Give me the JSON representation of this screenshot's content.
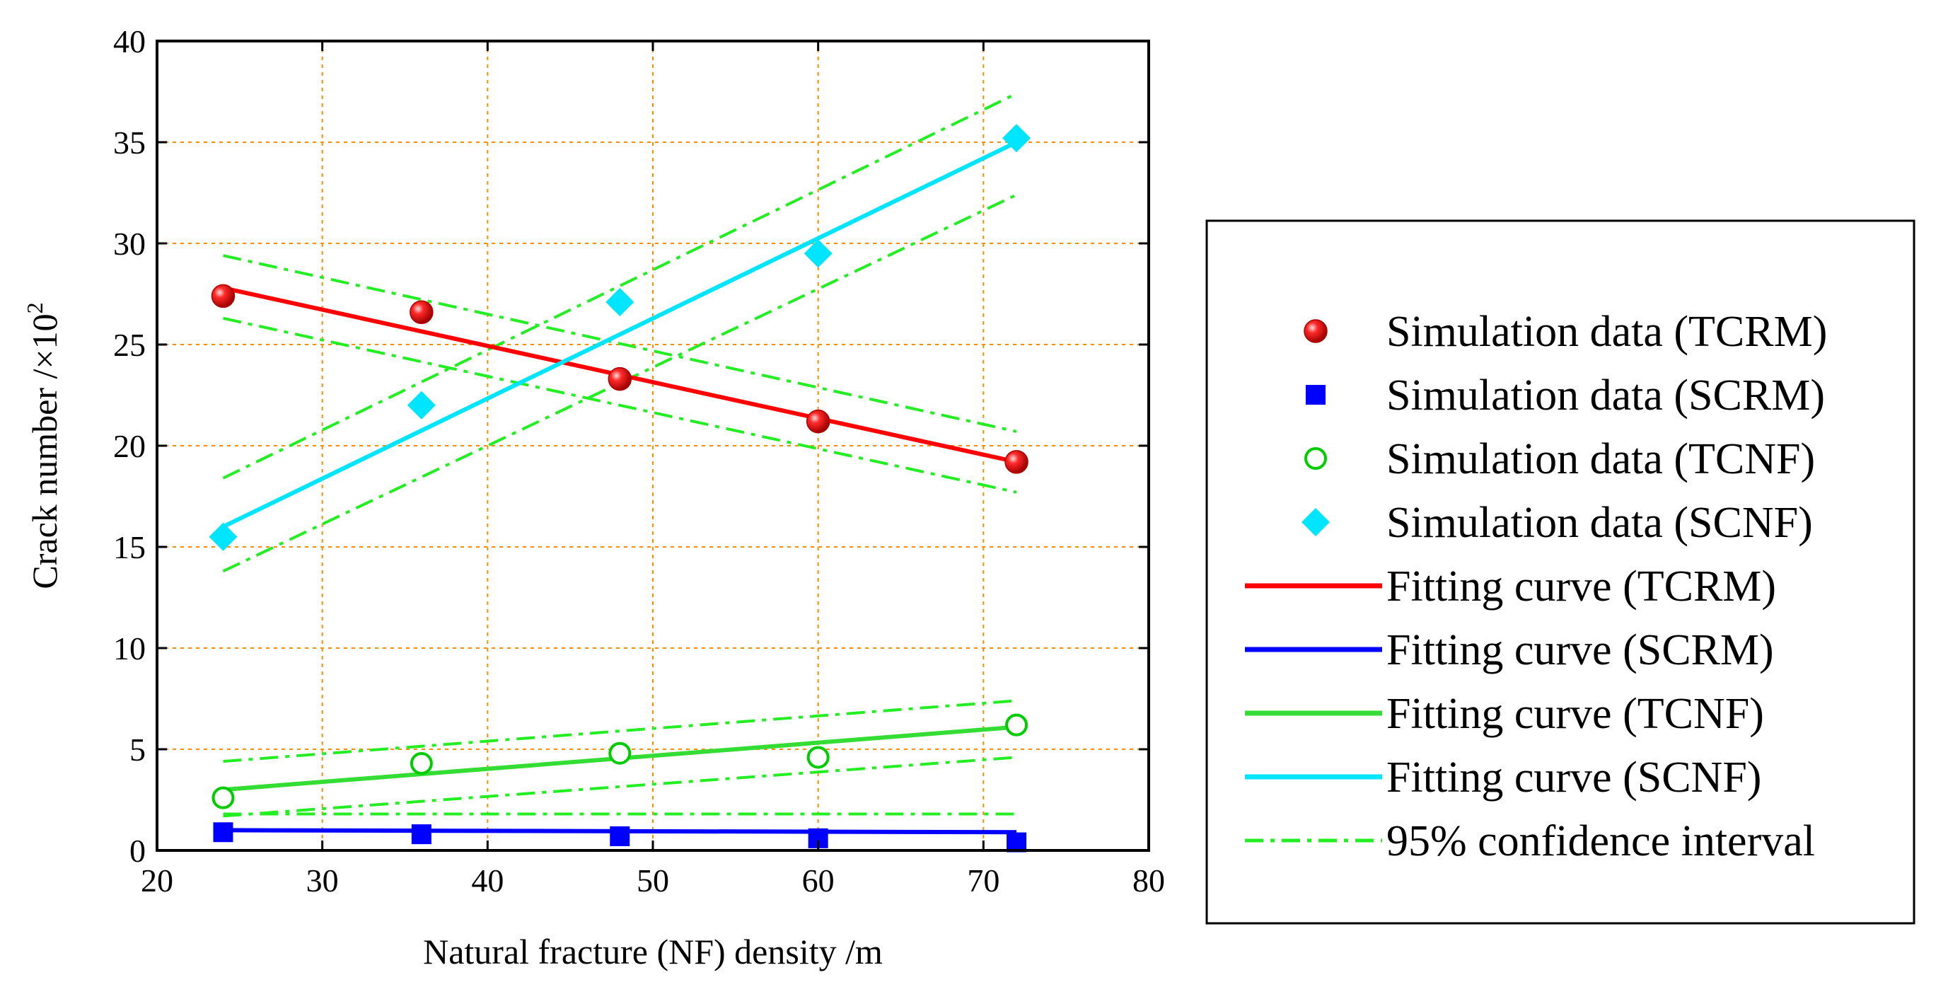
{
  "chart_data": {
    "type": "scatter",
    "xlabel": "Natural fracture (NF) density /m",
    "ylabel_main": "Crack number /×10",
    "ylabel_exp": "2",
    "xlim": [
      20,
      80
    ],
    "ylim": [
      0,
      40
    ],
    "xticks": [
      20,
      30,
      40,
      50,
      60,
      70,
      80
    ],
    "yticks": [
      0,
      5,
      10,
      15,
      20,
      25,
      30,
      35,
      40
    ],
    "grid": true,
    "legend_position": "right",
    "series": [
      {
        "id": "tcrm-data",
        "name": "Simulation data (TCRM)",
        "kind": "points",
        "marker": "sphere",
        "color": "#ff0000",
        "x": [
          24,
          36,
          48,
          60,
          72
        ],
        "y": [
          27.4,
          26.6,
          23.3,
          21.2,
          19.2
        ]
      },
      {
        "id": "scrm-data",
        "name": "Simulation data (SCRM)",
        "kind": "points",
        "marker": "square",
        "color": "#0000ff",
        "x": [
          24,
          36,
          48,
          60,
          72
        ],
        "y": [
          0.9,
          0.8,
          0.7,
          0.6,
          0.4
        ]
      },
      {
        "id": "tcnf-data",
        "name": "Simulation data (TCNF)",
        "kind": "points",
        "marker": "circle-open",
        "color": "#00cc00",
        "x": [
          24,
          36,
          48,
          60,
          72
        ],
        "y": [
          2.6,
          4.3,
          4.8,
          4.6,
          6.2
        ]
      },
      {
        "id": "scnf-data",
        "name": "Simulation data (SCNF)",
        "kind": "points",
        "marker": "diamond",
        "color": "#00e5ff",
        "x": [
          24,
          36,
          48,
          60,
          72
        ],
        "y": [
          15.5,
          22.0,
          27.1,
          29.5,
          35.2
        ]
      },
      {
        "id": "tcrm-fit",
        "name": "Fitting curve (TCRM)",
        "kind": "line",
        "color": "#ff0000",
        "x": [
          24,
          72
        ],
        "y": [
          27.8,
          19.2
        ]
      },
      {
        "id": "scrm-fit",
        "name": "Fitting curve (SCRM)",
        "kind": "line",
        "color": "#0000ff",
        "x": [
          24,
          72
        ],
        "y": [
          1.0,
          0.9
        ]
      },
      {
        "id": "tcnf-fit",
        "name": "Fitting curve (TCNF)",
        "kind": "line",
        "color": "#33dd33",
        "x": [
          24,
          72
        ],
        "y": [
          3.0,
          6.1
        ]
      },
      {
        "id": "scnf-fit",
        "name": "Fitting curve (SCNF)",
        "kind": "line",
        "color": "#00e5ff",
        "x": [
          24,
          72
        ],
        "y": [
          16.0,
          35.0
        ]
      },
      {
        "id": "ci",
        "name": "95% confidence interval",
        "kind": "dashdot",
        "color": "#22ee22",
        "segments": [
          {
            "x": [
              24,
              72
            ],
            "y": [
              29.4,
              20.7
            ]
          },
          {
            "x": [
              24,
              72
            ],
            "y": [
              26.3,
              17.7
            ]
          },
          {
            "x": [
              24,
              72
            ],
            "y": [
              18.4,
              37.4
            ]
          },
          {
            "x": [
              24,
              72
            ],
            "y": [
              13.8,
              32.4
            ]
          },
          {
            "x": [
              24,
              72
            ],
            "y": [
              4.4,
              7.4
            ]
          },
          {
            "x": [
              24,
              72
            ],
            "y": [
              1.7,
              4.6
            ]
          },
          {
            "x": [
              24,
              72
            ],
            "y": [
              1.8,
              1.8
            ]
          }
        ]
      }
    ]
  }
}
